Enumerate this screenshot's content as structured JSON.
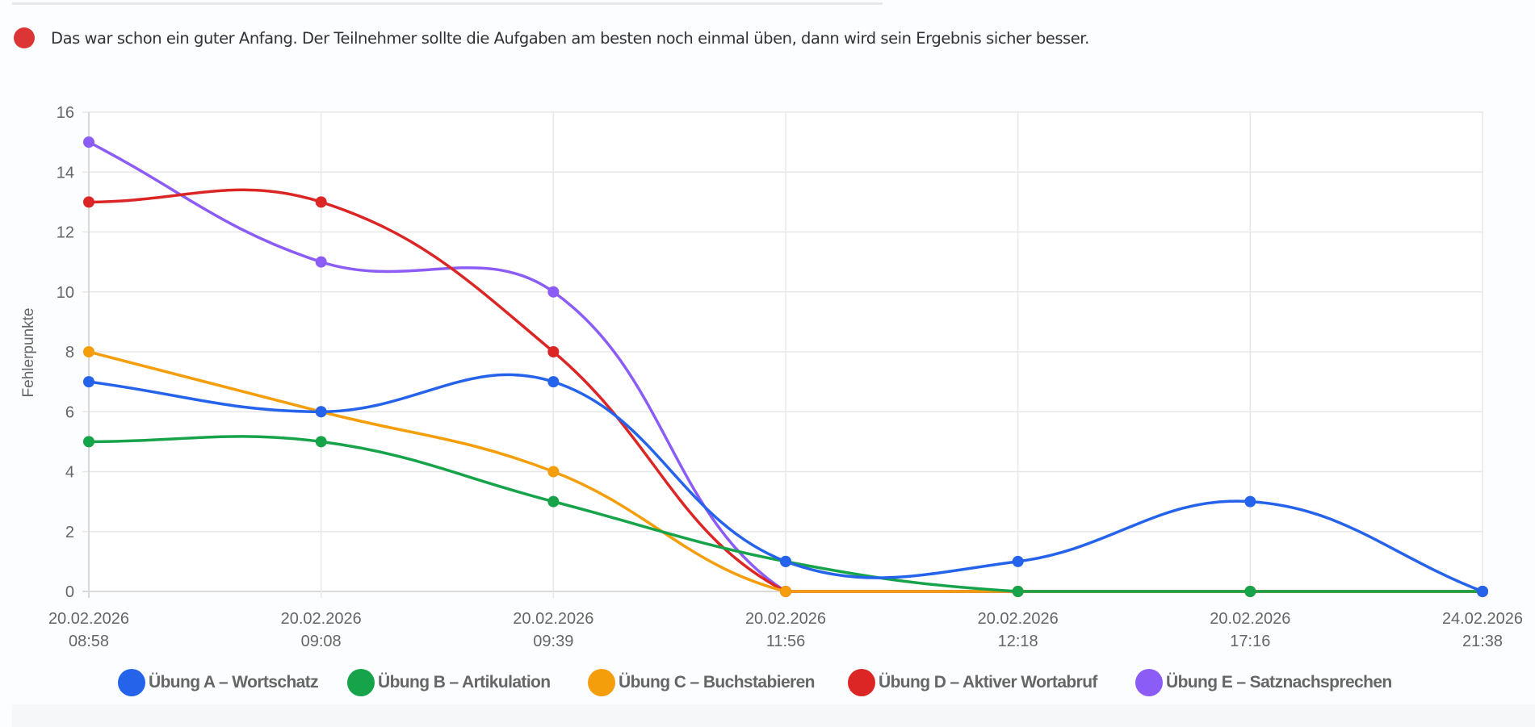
{
  "feedback": {
    "status_color": "#dc3535",
    "message": "Das war schon ein guter Anfang. Der Teilnehmer sollte die Aufgaben am besten noch einmal üben, dann wird sein Ergebnis sicher besser."
  },
  "chart_data": {
    "type": "line",
    "title": "",
    "xlabel": "",
    "ylabel": "Fehlerpunkte",
    "ylim": [
      0,
      16
    ],
    "y_ticks": [
      0,
      2,
      4,
      6,
      8,
      10,
      12,
      14,
      16
    ],
    "grid": true,
    "legend_position": "bottom",
    "categories": [
      [
        "20.02.2026",
        "08:58"
      ],
      [
        "20.02.2026",
        "09:08"
      ],
      [
        "20.02.2026",
        "09:39"
      ],
      [
        "20.02.2026",
        "11:56"
      ],
      [
        "20.02.2026",
        "12:18"
      ],
      [
        "20.02.2026",
        "17:16"
      ],
      [
        "24.02.2026",
        "21:38"
      ]
    ],
    "series": [
      {
        "name": "Übung A – Wortschatz",
        "color": "#2563eb",
        "values": [
          7,
          6,
          7,
          1,
          1,
          3,
          0
        ]
      },
      {
        "name": "Übung B – Artikulation",
        "color": "#16a34a",
        "values": [
          5,
          5,
          3,
          1,
          0,
          0,
          0
        ]
      },
      {
        "name": "Übung C – Buchstabieren",
        "color": "#f59e0b",
        "values": [
          8,
          6,
          4,
          0,
          0,
          0,
          0
        ]
      },
      {
        "name": "Übung D – Aktiver Wortabruf",
        "color": "#dc2626",
        "values": [
          13,
          13,
          8,
          0,
          0,
          0,
          0
        ]
      },
      {
        "name": "Übung E – Satznachsprechen",
        "color": "#8b5cf6",
        "values": [
          15,
          11,
          10,
          0,
          0,
          0,
          0
        ]
      }
    ]
  },
  "legend": {
    "items": [
      {
        "label": "Übung A – Wortschatz",
        "color": "#2563eb"
      },
      {
        "label": "Übung B – Artikulation",
        "color": "#16a34a"
      },
      {
        "label": "Übung C – Buchstabieren",
        "color": "#f59e0b"
      },
      {
        "label": "Übung D – Aktiver Wortabruf",
        "color": "#dc2626"
      },
      {
        "label": "Übung E – Satznachsprechen",
        "color": "#8b5cf6"
      }
    ]
  }
}
